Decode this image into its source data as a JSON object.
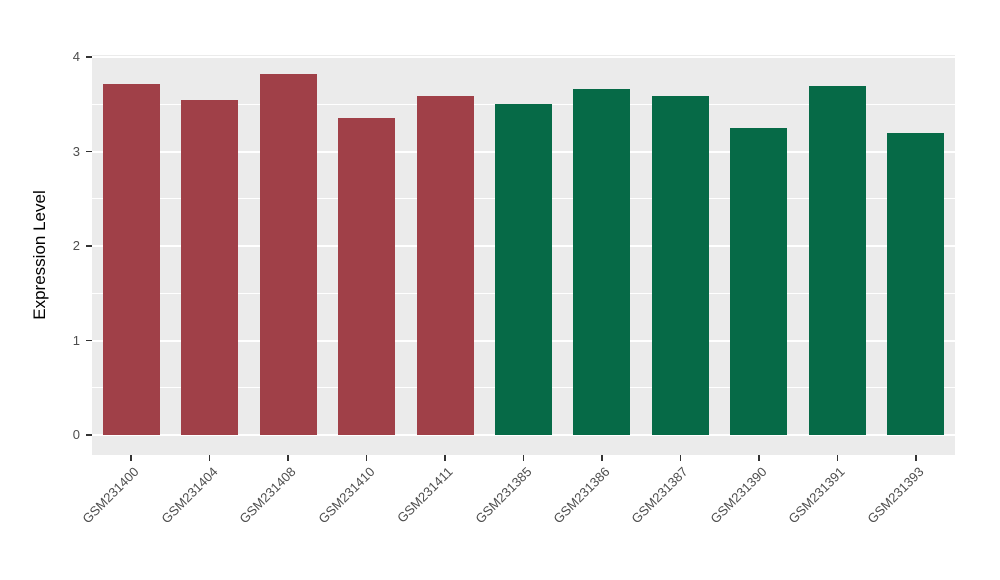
{
  "chart_data": {
    "type": "bar",
    "title": "",
    "xlabel": "",
    "ylabel": "Expression Level",
    "ylim": [
      0,
      4
    ],
    "yticks": [
      0,
      1,
      2,
      3,
      4
    ],
    "grid": true,
    "legend_position": "none",
    "panel_background": "#EBEBEB",
    "gridline_color": "#FFFFFF",
    "axis_text_color": "#4D4D4D",
    "tick_color": "#333333",
    "categories": [
      "GSM231400",
      "GSM231404",
      "GSM231408",
      "GSM231410",
      "GSM231411",
      "GSM231385",
      "GSM231386",
      "GSM231387",
      "GSM231390",
      "GSM231391",
      "GSM231393"
    ],
    "values": [
      3.71,
      3.54,
      3.82,
      3.35,
      3.59,
      3.5,
      3.66,
      3.59,
      3.25,
      3.69,
      3.2
    ],
    "bar_groups": [
      "group1",
      "group1",
      "group1",
      "group1",
      "group1",
      "group2",
      "group2",
      "group2",
      "group2",
      "group2",
      "group2"
    ],
    "group_colors": {
      "group1": "#A04048",
      "group2": "#066A47"
    }
  }
}
